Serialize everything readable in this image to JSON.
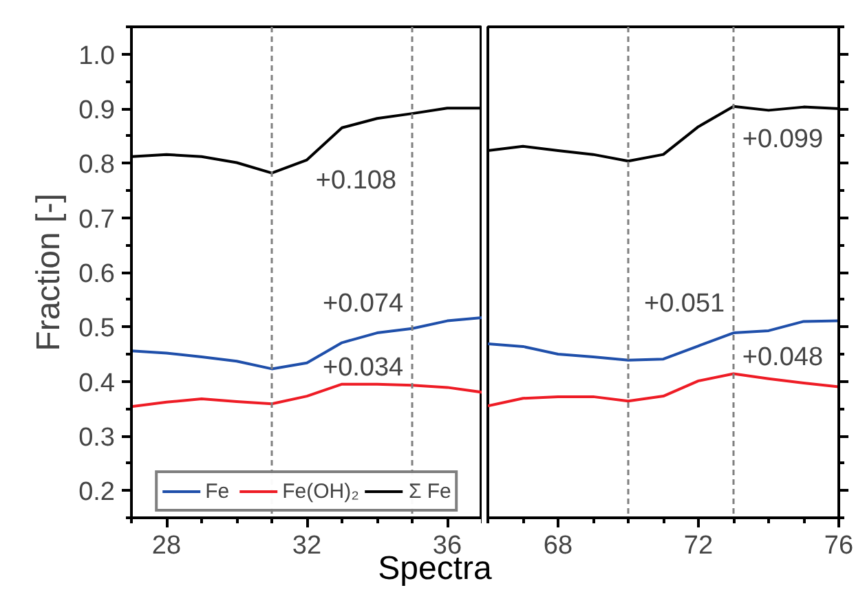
{
  "chart_data": [
    {
      "type": "line",
      "ylabel": "Fraction [-]",
      "xlabel": "Spectra",
      "x": [
        27,
        28,
        29,
        30,
        31,
        32,
        33,
        34,
        35,
        36,
        37
      ],
      "xlim": [
        27,
        37
      ],
      "xticks": [
        28,
        32,
        36
      ],
      "ylim": [
        0.15,
        1.05
      ],
      "yticks": [
        {
          "value": 0.2,
          "label": "0.2"
        },
        {
          "value": 0.3,
          "label": "0.3"
        },
        {
          "value": 0.4,
          "label": "0.4"
        },
        {
          "value": 0.5,
          "label": "0.5"
        },
        {
          "value": 0.6,
          "label": "0.6"
        },
        {
          "value": 0.7,
          "label": "0.7"
        },
        {
          "value": 0.8,
          "label": "0.8"
        },
        {
          "value": 0.9,
          "label": "0.9"
        },
        {
          "value": 1.0,
          "label": "1.0"
        }
      ],
      "legend": "bottom",
      "grid": false,
      "series": [
        {
          "name": "Fe",
          "color": "#1f4faa",
          "values": [
            0.456,
            0.452,
            0.445,
            0.437,
            0.423,
            0.434,
            0.471,
            0.489,
            0.497,
            0.511,
            0.517
          ]
        },
        {
          "name": "Fe(OH)₂",
          "color": "#ee1c25",
          "values": [
            0.354,
            0.362,
            0.368,
            0.363,
            0.359,
            0.373,
            0.395,
            0.395,
            0.393,
            0.389,
            0.38
          ]
        },
        {
          "name": "Σ Fe",
          "color": "#000000",
          "values": [
            0.812,
            0.816,
            0.812,
            0.801,
            0.782,
            0.806,
            0.865,
            0.882,
            0.891,
            0.901,
            0.901
          ]
        }
      ],
      "ref_lines": [
        {
          "axis": "x",
          "value": 31,
          "color": "#808080",
          "line_style": "dashed"
        },
        {
          "axis": "x",
          "value": 35,
          "color": "#808080",
          "line_style": "dashed"
        }
      ],
      "annotations": [
        "+0.108",
        "+0.074",
        "+0.034"
      ]
    },
    {
      "type": "line",
      "x": [
        66,
        67,
        68,
        69,
        70,
        71,
        72,
        73,
        74,
        75,
        76
      ],
      "xlim": [
        66,
        76
      ],
      "xticks": [
        68,
        72,
        76
      ],
      "ylim": [
        0.15,
        1.05
      ],
      "yticks": [
        {
          "value": 0.2,
          "label": null
        },
        {
          "value": 0.3,
          "label": null
        },
        {
          "value": 0.4,
          "label": null
        },
        {
          "value": 0.5,
          "label": null
        },
        {
          "value": 0.6,
          "label": null
        },
        {
          "value": 0.7,
          "label": null
        },
        {
          "value": 0.8,
          "label": null
        },
        {
          "value": 0.9,
          "label": null
        },
        {
          "value": 1.0,
          "label": null
        }
      ],
      "tick_labels": "x",
      "grid": false,
      "series": [
        {
          "color": "#1f4faa",
          "values": [
            0.469,
            0.464,
            0.45,
            0.445,
            0.439,
            0.441,
            0.465,
            0.489,
            0.493,
            0.51,
            0.511
          ]
        },
        {
          "color": "#ee1c25",
          "values": [
            0.355,
            0.369,
            0.372,
            0.372,
            0.364,
            0.373,
            0.401,
            0.414,
            0.405,
            0.397,
            0.39
          ]
        },
        {
          "color": "#000000",
          "values": [
            0.823,
            0.831,
            0.823,
            0.816,
            0.804,
            0.816,
            0.867,
            0.904,
            0.897,
            0.903,
            0.9
          ]
        }
      ],
      "ref_lines": [
        {
          "axis": "x",
          "value": 70,
          "color": "#808080",
          "line_style": "dashed"
        },
        {
          "axis": "x",
          "value": 73,
          "color": "#808080",
          "line_style": "dashed"
        }
      ],
      "annotations": [
        "+0.099",
        "+0.051",
        "+0.048"
      ]
    }
  ]
}
